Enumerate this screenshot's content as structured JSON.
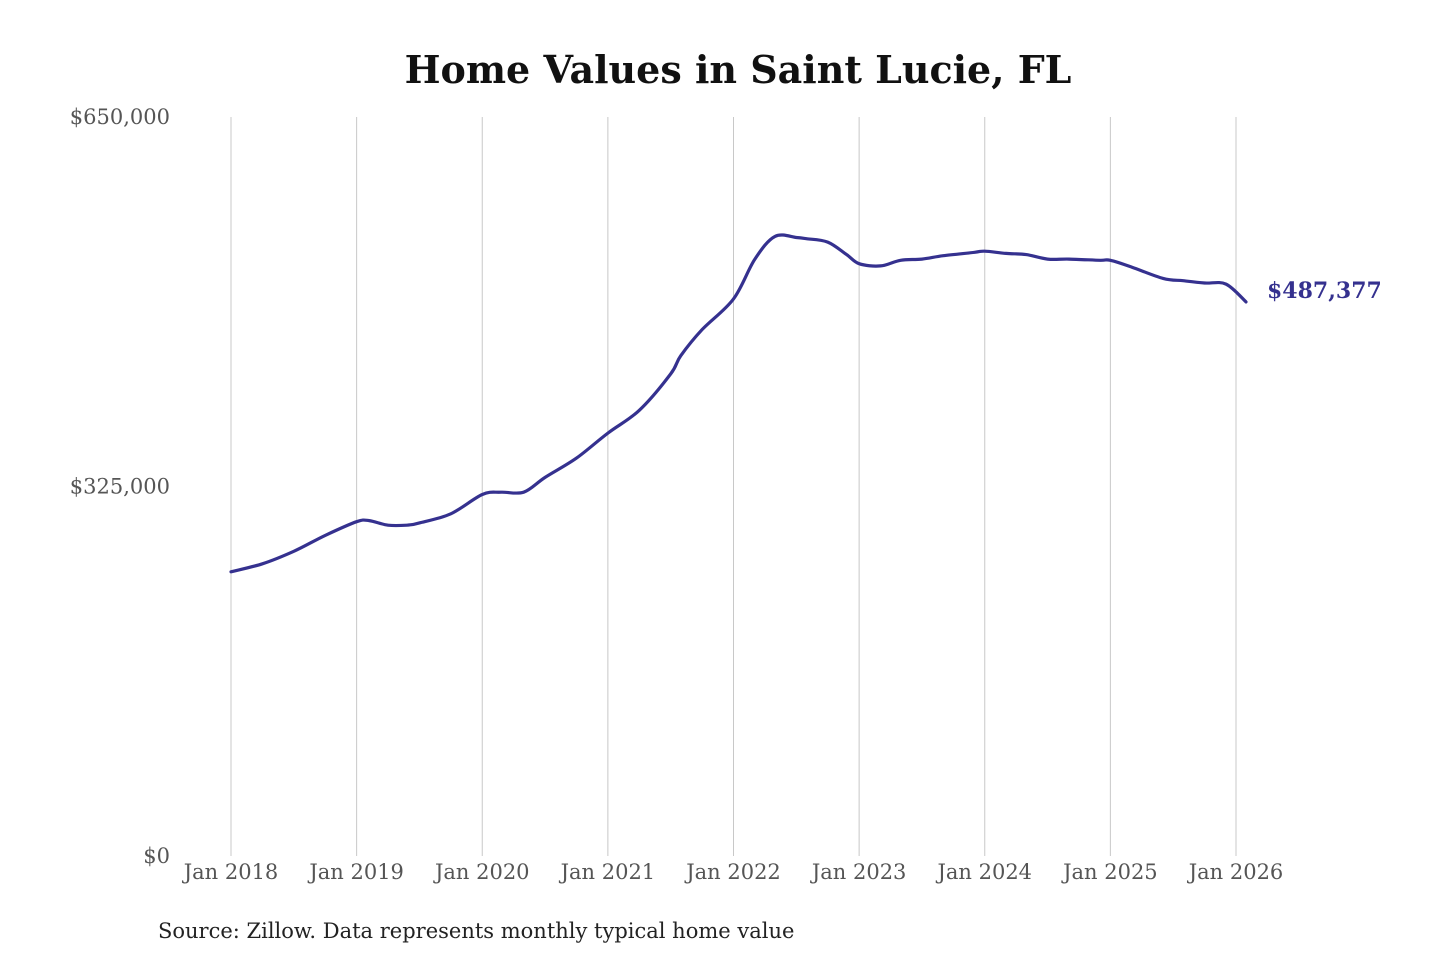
{
  "chart_data": {
    "type": "line",
    "title": "Home Values in Saint Lucie, FL",
    "source": "Source: Zillow. Data represents monthly typical home value",
    "ylim": [
      0,
      650000
    ],
    "yticks": [
      {
        "value": 0,
        "label": "$0"
      },
      {
        "value": 325000,
        "label": "$325,000"
      },
      {
        "value": 650000,
        "label": "$650,000"
      }
    ],
    "xticks": [
      {
        "value": 2018.0,
        "label": "Jan 2018"
      },
      {
        "value": 2019.0,
        "label": "Jan 2019"
      },
      {
        "value": 2020.0,
        "label": "Jan 2020"
      },
      {
        "value": 2021.0,
        "label": "Jan 2021"
      },
      {
        "value": 2022.0,
        "label": "Jan 2022"
      },
      {
        "value": 2023.0,
        "label": "Jan 2023"
      },
      {
        "value": 2024.0,
        "label": "Jan 2024"
      },
      {
        "value": 2025.0,
        "label": "Jan 2025"
      },
      {
        "value": 2026.0,
        "label": "Jan 2026"
      }
    ],
    "xlim": [
      2018.0,
      2026.0
    ],
    "grid": "vertical",
    "line_color": "#35318f",
    "end_label": "$487,377",
    "series": [
      {
        "x": [
          2018.0,
          2018.25,
          2018.5,
          2018.75,
          2019.0,
          2019.1,
          2019.25,
          2019.4,
          2019.5,
          2019.75,
          2020.0,
          2020.15,
          2020.33,
          2020.5,
          2020.75,
          2021.0,
          2021.25,
          2021.5,
          2021.58,
          2021.75,
          2022.0,
          2022.17,
          2022.33,
          2022.5,
          2022.58,
          2022.75,
          2022.9,
          2023.0,
          2023.17,
          2023.33,
          2023.5,
          2023.67,
          2023.92,
          2024.0,
          2024.17,
          2024.33,
          2024.5,
          2024.67,
          2024.92,
          2025.0,
          2025.17,
          2025.42,
          2025.58,
          2025.75,
          2025.92,
          2026.08
        ],
        "y": [
          250000,
          257000,
          268000,
          282000,
          294000,
          295000,
          291000,
          291000,
          293000,
          301000,
          318000,
          320000,
          320000,
          333000,
          350000,
          372000,
          392000,
          424000,
          440000,
          463000,
          490000,
          525000,
          545000,
          544000,
          543000,
          540000,
          529000,
          521000,
          519000,
          524000,
          525000,
          528000,
          531000,
          532000,
          530000,
          529000,
          525000,
          525000,
          524000,
          524000,
          518000,
          508000,
          506000,
          504000,
          503000,
          487377
        ]
      }
    ]
  }
}
